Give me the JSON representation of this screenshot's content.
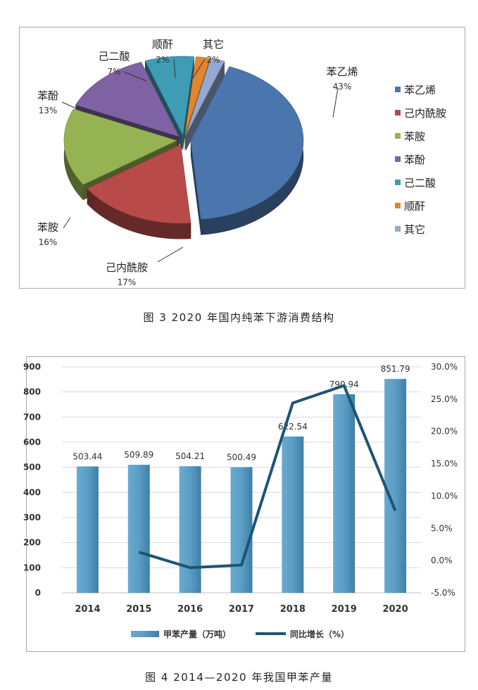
{
  "pie": {
    "chart_data": {
      "type": "pie",
      "title": "",
      "slices": [
        {
          "label": "苯乙烯",
          "value": 43,
          "value_label": "43%",
          "color": "#4a76ad"
        },
        {
          "label": "己内酰胺",
          "value": 17,
          "value_label": "17%",
          "color": "#b84a4a"
        },
        {
          "label": "苯胺",
          "value": 16,
          "value_label": "16%",
          "color": "#95b352"
        },
        {
          "label": "苯酚",
          "value": 13,
          "value_label": "13%",
          "color": "#7e62a3"
        },
        {
          "label": "己二酸",
          "value": 7,
          "value_label": "7%",
          "color": "#3f9cb5"
        },
        {
          "label": "顺酐",
          "value": 2,
          "value_label": "2%",
          "color": "#e1862e"
        },
        {
          "label": "其它",
          "value": 2,
          "value_label": "2%",
          "color": "#93a9d1"
        }
      ],
      "legend_position": "right"
    },
    "caption": "图 3  2020 年国内纯苯下游消费结构"
  },
  "combo": {
    "chart_data": {
      "type": "bar",
      "categories": [
        "2014",
        "2015",
        "2016",
        "2017",
        "2018",
        "2019",
        "2020"
      ],
      "series": [
        {
          "name": "甲苯产量（万吨）",
          "type": "bar",
          "axis": "left",
          "values": [
            503.44,
            509.89,
            504.21,
            500.49,
            622.54,
            790.94,
            851.79
          ],
          "value_labels": [
            "503.44",
            "509.89",
            "504.21",
            "500.49",
            "622.54",
            "790.94",
            "851.79"
          ],
          "color": "#5b9dc4"
        },
        {
          "name": "同比增长（%）",
          "type": "line",
          "axis": "right",
          "values": [
            null,
            1.3,
            -1.1,
            -0.7,
            24.4,
            27.1,
            7.7
          ],
          "color": "#1d5473"
        }
      ],
      "left_axis": {
        "min": 0,
        "max": 900,
        "ticks": [
          "0",
          "100",
          "200",
          "300",
          "400",
          "500",
          "600",
          "700",
          "800",
          "900"
        ]
      },
      "right_axis": {
        "min": -5,
        "max": 30,
        "ticks": [
          "-5.0%",
          "0.0%",
          "5.0%",
          "10.0%",
          "15.0%",
          "20.0%",
          "25.0%",
          "30.0%"
        ]
      },
      "grid": true,
      "legend_position": "bottom"
    },
    "caption": "图 4  2014—2020 年我国甲苯产量"
  }
}
